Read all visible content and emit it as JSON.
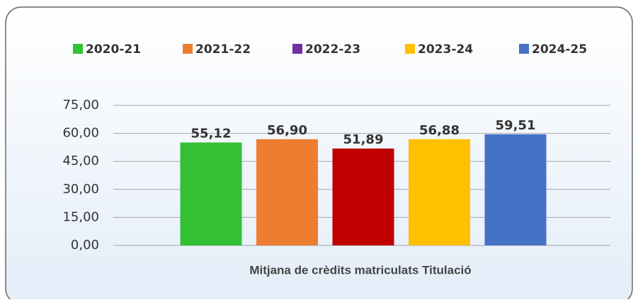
{
  "chart_data": {
    "type": "bar",
    "categories": [
      "Mitjana de crèdits matriculats Titulació"
    ],
    "series": [
      {
        "name": "2020-21",
        "color": "#33c033",
        "legend_color": "#33c033",
        "values": [
          55.12
        ],
        "value_labels": [
          "55,12"
        ]
      },
      {
        "name": "2021-22",
        "color": "#ed7d31",
        "legend_color": "#ed7d31",
        "values": [
          56.9
        ],
        "value_labels": [
          "56,90"
        ]
      },
      {
        "name": "2022-23",
        "color": "#c00000",
        "legend_color": "#7030a0",
        "values": [
          51.89
        ],
        "value_labels": [
          "51,89"
        ]
      },
      {
        "name": "2023-24",
        "color": "#ffc000",
        "legend_color": "#ffc000",
        "values": [
          56.88
        ],
        "value_labels": [
          "56,88"
        ]
      },
      {
        "name": "2024-25",
        "color": "#4472c4",
        "legend_color": "#4472c4",
        "values": [
          59.51
        ],
        "value_labels": [
          "59,51"
        ]
      }
    ],
    "ylim": [
      0,
      75
    ],
    "yticks": [
      {
        "value": 0,
        "label": "0,00"
      },
      {
        "value": 15,
        "label": "15,00"
      },
      {
        "value": 30,
        "label": "30,00"
      },
      {
        "value": 45,
        "label": "45,00"
      },
      {
        "value": 60,
        "label": "60,00"
      },
      {
        "value": 75,
        "label": "75,00"
      }
    ],
    "grid": true,
    "legend": "top"
  }
}
